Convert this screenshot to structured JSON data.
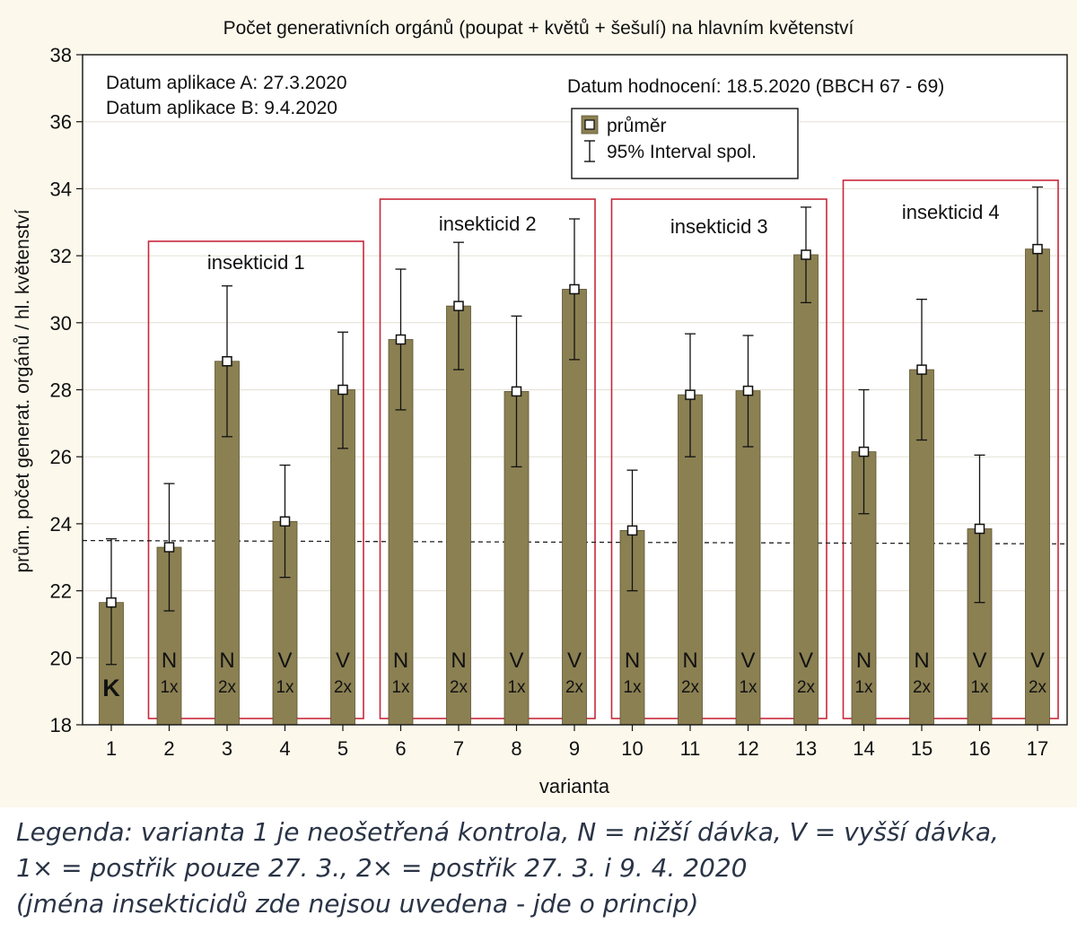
{
  "chart_data": {
    "type": "bar",
    "title": "Počet generativních orgánů (poupat + květů + šešulí) na hlavním květenství",
    "xlabel": "varianta",
    "ylabel": "prům. počet generat. orgánů / hl. květenství",
    "ylim": [
      18,
      38
    ],
    "yticks": [
      18,
      20,
      22,
      24,
      26,
      28,
      30,
      32,
      34,
      36,
      38
    ],
    "grid": true,
    "categories": [
      "1",
      "2",
      "3",
      "4",
      "5",
      "6",
      "7",
      "8",
      "9",
      "10",
      "11",
      "12",
      "13",
      "14",
      "15",
      "16",
      "17"
    ],
    "values": [
      21.65,
      23.3,
      28.85,
      24.07,
      28.0,
      29.5,
      30.5,
      27.95,
      31.0,
      23.8,
      27.85,
      27.97,
      32.03,
      26.15,
      28.6,
      23.85,
      32.2
    ],
    "ci_lower": [
      19.8,
      21.4,
      26.6,
      22.4,
      26.25,
      27.4,
      28.6,
      25.7,
      28.9,
      22.0,
      26.0,
      26.3,
      30.6,
      24.3,
      26.5,
      21.65,
      30.35
    ],
    "ci_upper": [
      23.55,
      25.2,
      31.1,
      25.75,
      29.72,
      31.6,
      32.4,
      30.2,
      33.1,
      25.6,
      29.67,
      29.62,
      33.45,
      28.0,
      30.7,
      26.05,
      34.05
    ],
    "bar_dose": [
      "K",
      "N",
      "N",
      "V",
      "V",
      "N",
      "N",
      "V",
      "V",
      "N",
      "N",
      "V",
      "V",
      "N",
      "N",
      "V",
      "V"
    ],
    "bar_frequency": [
      "",
      "1x",
      "2x",
      "1x",
      "2x",
      "1x",
      "2x",
      "1x",
      "2x",
      "1x",
      "2x",
      "1x",
      "2x",
      "1x",
      "2x",
      "1x",
      "2x"
    ],
    "control_reference_line": [
      23.5,
      23.4
    ],
    "groups": [
      {
        "label": "insekticid 1",
        "from": 2,
        "to": 5
      },
      {
        "label": "insekticid 2",
        "from": 6,
        "to": 9
      },
      {
        "label": "insekticid 3",
        "from": 10,
        "to": 13
      },
      {
        "label": "insekticid 4",
        "from": 14,
        "to": 17
      }
    ],
    "annotations": {
      "date_a": "Datum aplikace A: 27.3.2020",
      "date_b": "Datum aplikace B: 9.4.2020",
      "evaluation_date": "Datum hodnocení: 18.5.2020 (BBCH 67 - 69)"
    },
    "legend": {
      "placement": "top-right",
      "entries": [
        "průměr",
        "95% Interval spol."
      ]
    },
    "colors": {
      "bar": "#8b8052",
      "bar_edge": "#5c5432",
      "group_box": "#c8283a",
      "background": "#fcf8ec",
      "grid": "#e4e0d4"
    }
  },
  "caption": {
    "line1": "Legenda: varianta 1 je neošetřená kontrola, N = nižší dávka, V = vyšší dávka,",
    "line2": "1× = postřik pouze 27. 3., 2× = postřik 27. 3. i 9. 4. 2020",
    "line3": "(jména insekticidů zde nejsou uvedena - jde o princip)"
  }
}
